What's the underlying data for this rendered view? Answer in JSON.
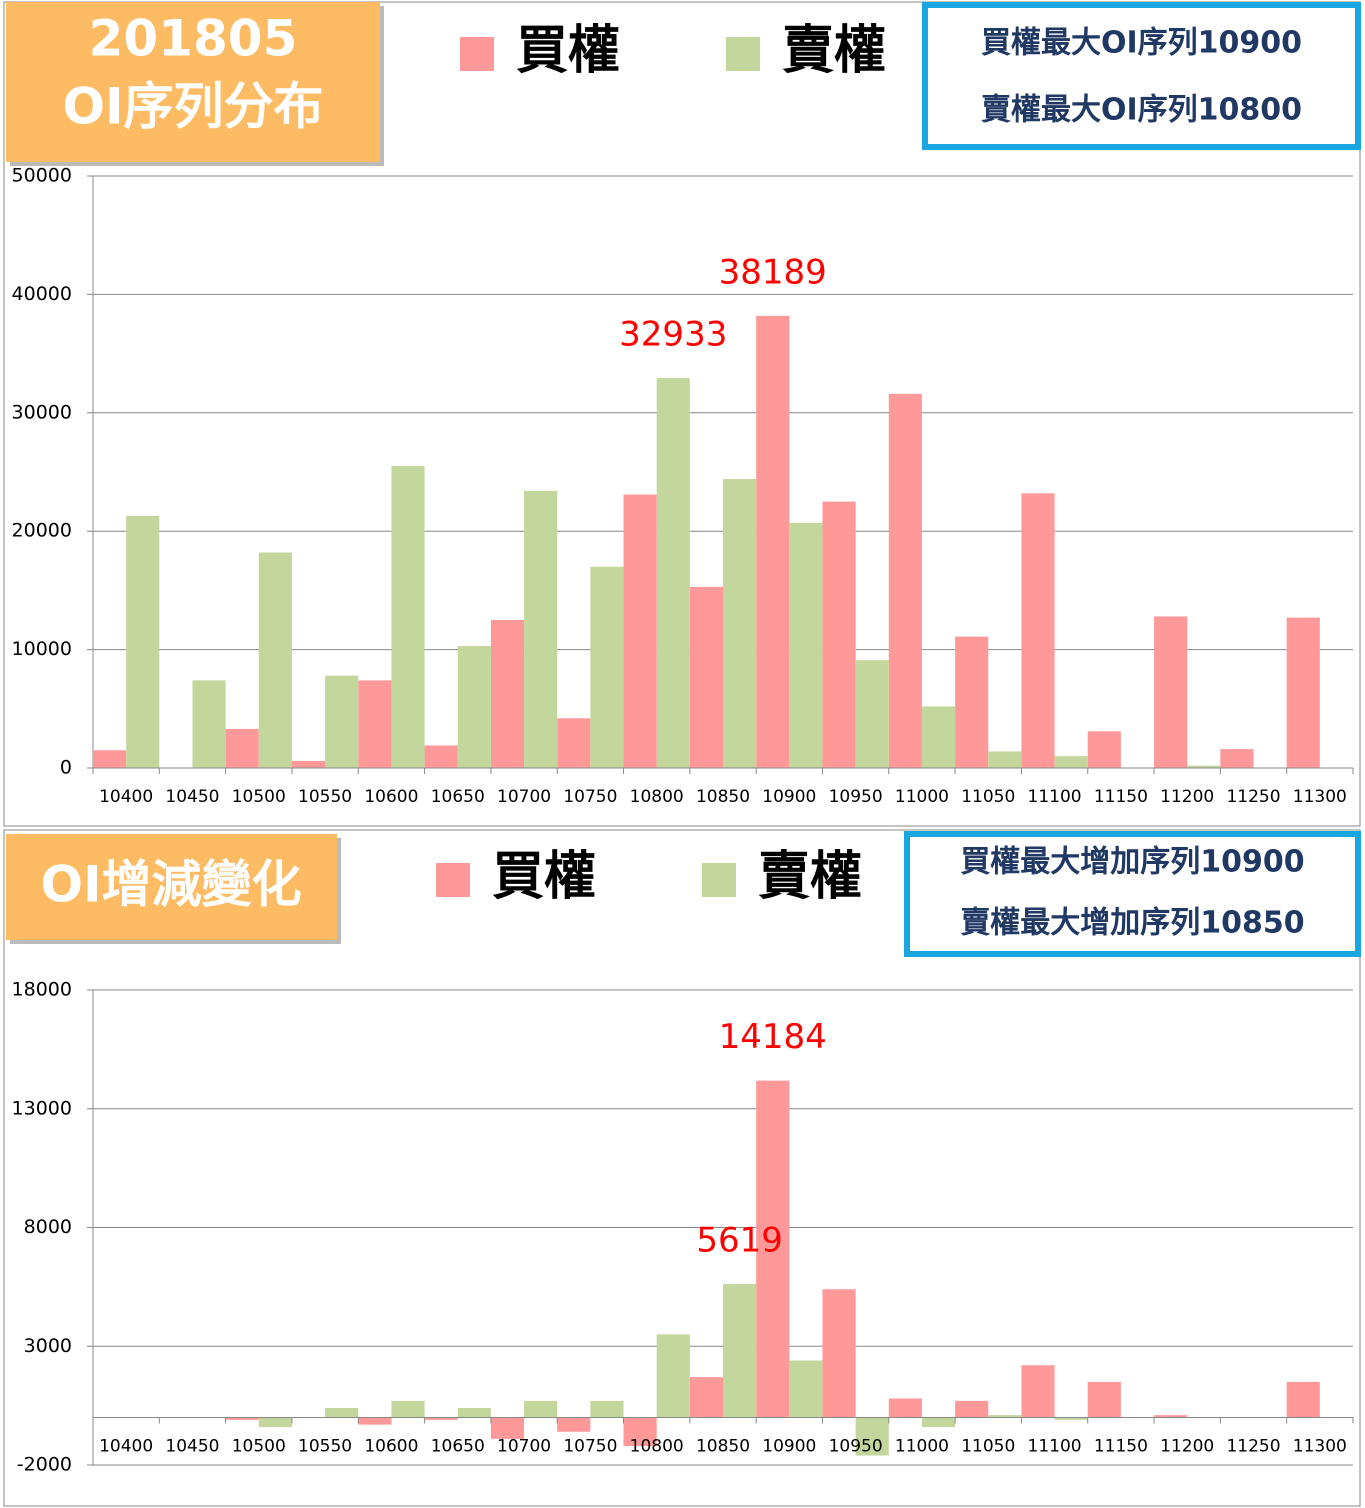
{
  "chart_data": [
    {
      "type": "bar",
      "title": [
        "201805",
        "OI序列分布"
      ],
      "annotations": [
        "買權最大OI序列10900",
        "賣權最大OI序列10800"
      ],
      "categories": [
        "10400",
        "10450",
        "10500",
        "10550",
        "10600",
        "10650",
        "10700",
        "10750",
        "10800",
        "10850",
        "10900",
        "10950",
        "11000",
        "11050",
        "11100",
        "11150",
        "11200",
        "11250",
        "11300"
      ],
      "series": [
        {
          "name": "買權",
          "color": "#ff9999",
          "labels_at": [
            10
          ],
          "values": [
            1500,
            0,
            3300,
            600,
            7400,
            1900,
            12500,
            4200,
            23100,
            15300,
            38189,
            22500,
            31600,
            11100,
            23200,
            3100,
            12800,
            1600,
            12700
          ]
        },
        {
          "name": "賣權",
          "color": "#c3d69b",
          "labels_at": [
            8
          ],
          "values": [
            21300,
            7400,
            18200,
            7800,
            25500,
            10300,
            23400,
            17000,
            32933,
            24400,
            20700,
            9100,
            5200,
            1400,
            1000,
            0,
            200,
            0,
            0
          ]
        }
      ],
      "ylim": [
        0,
        50000
      ],
      "yticks": [
        0,
        10000,
        20000,
        30000,
        40000,
        50000
      ],
      "grid": true
    },
    {
      "type": "bar",
      "title": [
        "OI增減變化"
      ],
      "annotations": [
        "買權最大增加序列10900",
        "賣權最大增加序列10850"
      ],
      "categories": [
        "10400",
        "10450",
        "10500",
        "10550",
        "10600",
        "10650",
        "10700",
        "10750",
        "10800",
        "10850",
        "10900",
        "10950",
        "11000",
        "11050",
        "11100",
        "11150",
        "11200",
        "11250",
        "11300"
      ],
      "series": [
        {
          "name": "買權",
          "color": "#ff9999",
          "labels_at": [
            10
          ],
          "values": [
            0,
            0,
            -100,
            0,
            -300,
            -100,
            -900,
            -600,
            -1200,
            1700,
            14184,
            5400,
            800,
            700,
            2200,
            1500,
            100,
            0,
            1500
          ]
        },
        {
          "name": "賣權",
          "color": "#c3d69b",
          "labels_at": [
            9
          ],
          "values": [
            0,
            0,
            -400,
            400,
            700,
            400,
            700,
            700,
            3500,
            5619,
            2400,
            -1600,
            -400,
            100,
            -100,
            0,
            0,
            0,
            0
          ]
        }
      ],
      "ylim": [
        -2000,
        18000
      ],
      "yticks": [
        -2000,
        3000,
        8000,
        13000,
        18000
      ],
      "grid": true
    }
  ]
}
